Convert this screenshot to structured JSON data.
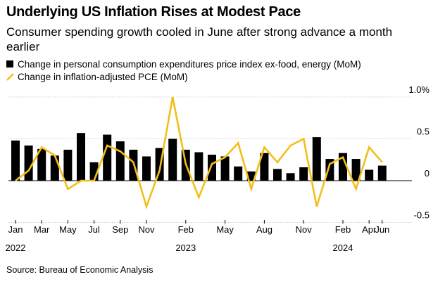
{
  "title": "Underlying US Inflation Rises at Modest Pace",
  "subtitle": "Consumer spending growth cooled in June after strong advance a month earlier",
  "source": "Source: Bureau of Economic Analysis",
  "colors": {
    "bars": "#000000",
    "line": "#f2bf1a",
    "grid": "#cccccc"
  },
  "chart_data": {
    "type": "bar",
    "series": [
      {
        "name": "Change in personal consumption expenditures price index ex-food, energy (MoM)",
        "type": "bar",
        "values": [
          0.48,
          0.42,
          0.38,
          0.3,
          0.37,
          0.57,
          0.22,
          0.55,
          0.47,
          0.37,
          0.29,
          0.39,
          0.5,
          0.37,
          0.34,
          0.31,
          0.29,
          0.17,
          0.11,
          0.33,
          0.14,
          0.09,
          0.16,
          0.52,
          0.26,
          0.33,
          0.26,
          0.13,
          0.18
        ]
      },
      {
        "name": "Change in inflation-adjusted PCE (MoM)",
        "type": "line",
        "values": [
          0.0,
          0.12,
          0.4,
          0.3,
          -0.1,
          0.0,
          0.0,
          0.42,
          0.35,
          0.22,
          -0.31,
          0.12,
          1.0,
          0.2,
          -0.2,
          0.2,
          0.28,
          0.45,
          -0.1,
          0.4,
          0.22,
          0.42,
          0.5,
          -0.31,
          0.2,
          0.28,
          -0.1,
          0.4,
          0.22
        ]
      }
    ],
    "x_tick_labels": [
      "Jan",
      "Mar",
      "May",
      "Jul",
      "Sep",
      "Nov",
      "Feb",
      "May",
      "Aug",
      "Nov",
      "Feb",
      "Apr",
      "Jun"
    ],
    "x_year_labels": [
      "2022",
      "2023",
      "2024"
    ],
    "y_tick_labels": [
      "1.0%",
      "0.5",
      "0",
      "-0.5"
    ],
    "ylim": [
      -0.5,
      1.0
    ],
    "grid": true,
    "legend": "top-left"
  }
}
